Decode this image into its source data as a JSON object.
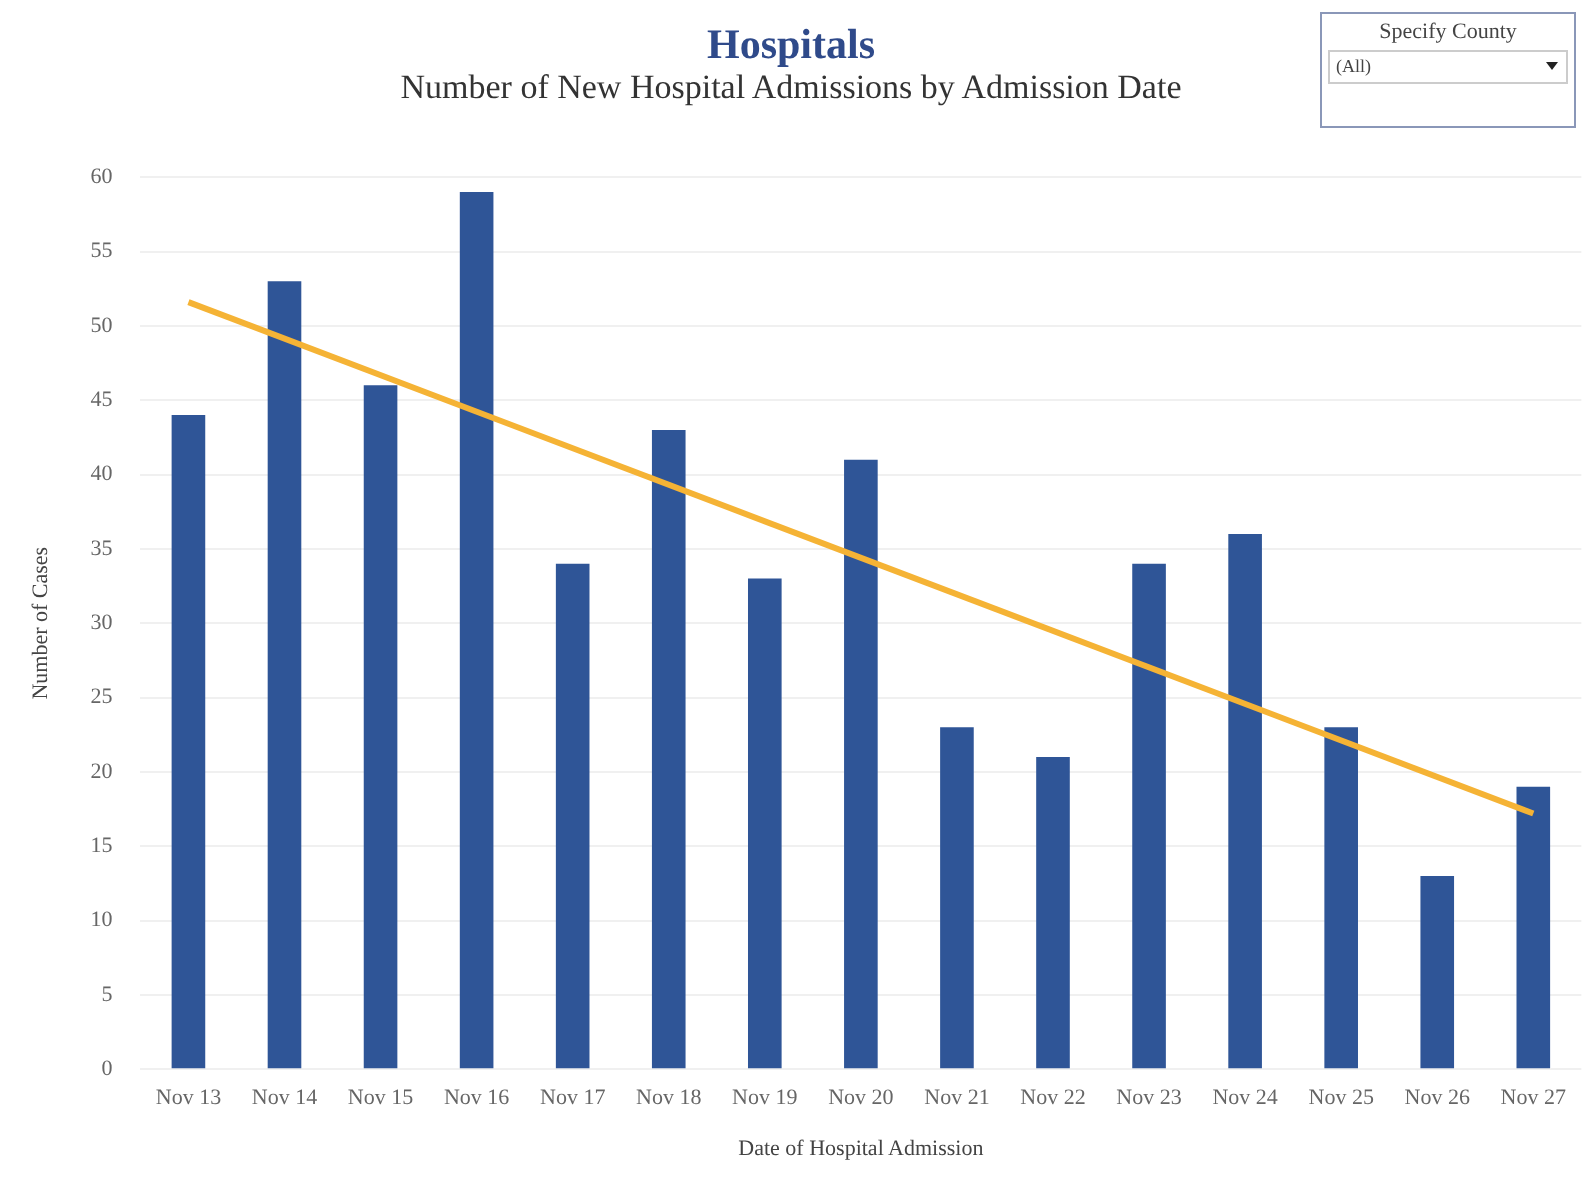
{
  "chart_data": {
    "type": "bar",
    "title": "Hospitals",
    "subtitle": "Number of New Hospital Admissions by Admission Date",
    "xlabel": "Date of Hospital Admission",
    "ylabel": "Number of Cases",
    "categories": [
      "Nov 13",
      "Nov 14",
      "Nov 15",
      "Nov 16",
      "Nov 17",
      "Nov 18",
      "Nov 19",
      "Nov 20",
      "Nov 21",
      "Nov 22",
      "Nov 23",
      "Nov 24",
      "Nov 25",
      "Nov 26",
      "Nov 27"
    ],
    "series": [
      {
        "color": "#2f5597",
        "values": [
          44,
          53,
          46,
          59,
          34,
          43,
          33,
          41,
          23,
          21,
          34,
          36,
          23,
          13,
          19
        ]
      },
      {
        "type": "line",
        "color": "#f5b335",
        "x": [
          "Nov 13",
          "Nov 27"
        ],
        "values": [
          51.6,
          17.2
        ]
      }
    ],
    "ylim": [
      0,
      60
    ],
    "yticks": [
      0,
      5,
      10,
      15,
      20,
      25,
      30,
      35,
      40,
      45,
      50,
      55,
      60
    ],
    "grid": "y",
    "legend": false,
    "marker": "none",
    "annotations": [
      "Specify County",
      "(All)"
    ]
  }
}
